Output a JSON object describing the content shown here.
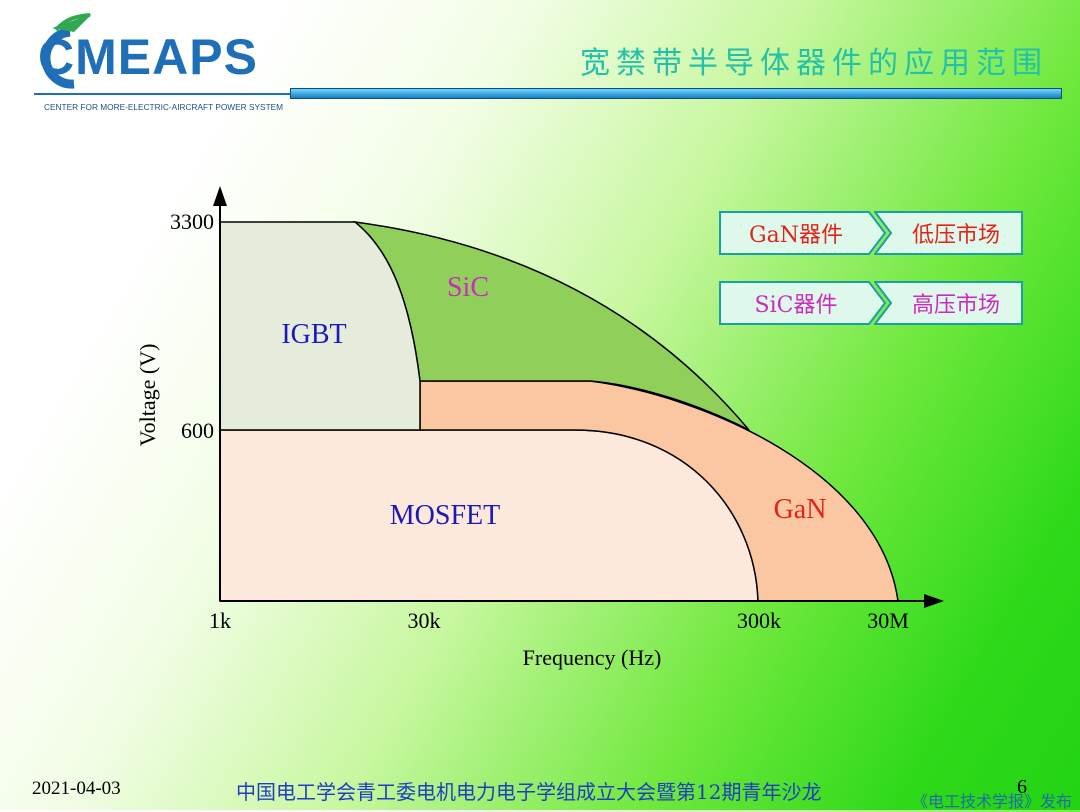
{
  "logo": {
    "name": "CMEAPS",
    "subtitle": "CENTER FOR MORE-ELECTRIC-AIRCRAFT POWER SYSTEM"
  },
  "title": "宽禁带半导体器件的应用范围",
  "diagram": {
    "y_ticks": [
      "3300",
      "600"
    ],
    "x_ticks": [
      "1k",
      "30k",
      "300k",
      "30M"
    ],
    "ylabel": "Voltage (V)",
    "xlabel": "Frequency (Hz)",
    "regions": {
      "igbt": {
        "label": "IGBT",
        "color": "#e5ecdc"
      },
      "sic": {
        "label": "SiC",
        "color": "#90d05a"
      },
      "mosfet": {
        "label": "MOSFET",
        "color": "#fde8dc"
      },
      "gan": {
        "label": "GaN",
        "color": "#fbc7a2"
      }
    }
  },
  "legend": [
    {
      "device": "GaN器件",
      "market": "低压市场"
    },
    {
      "device": "SiC器件",
      "market": "高压市场"
    }
  ],
  "footer": {
    "date": "2021-04-03",
    "event": "中国电工学会青工委电机电力电子学组成立大会暨第12期青年沙龙",
    "page": "6",
    "source": "《电工技术学报》发布"
  }
}
